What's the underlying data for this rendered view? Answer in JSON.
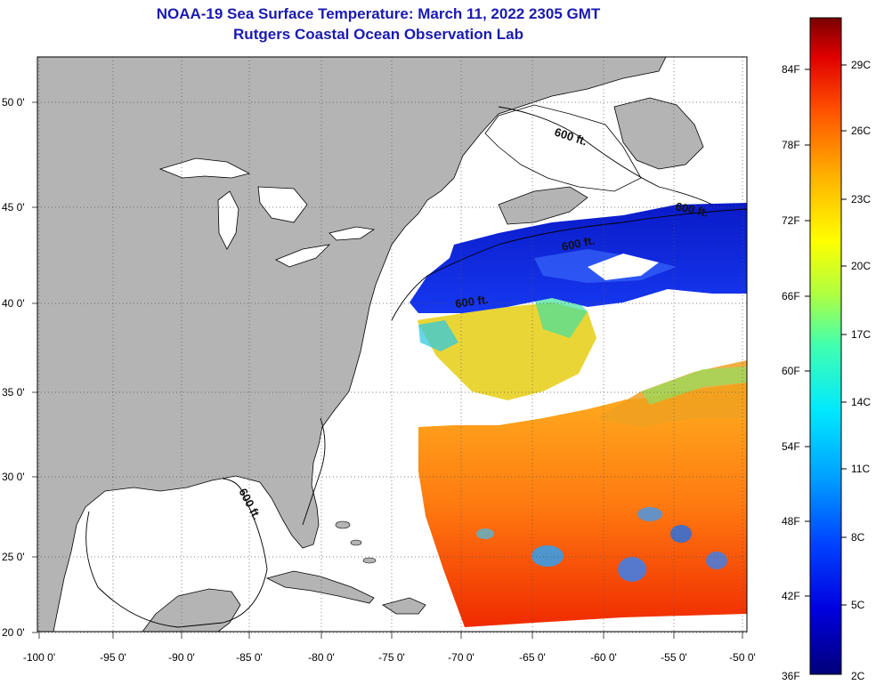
{
  "header": {
    "title": "NOAA-19 Sea Surface Temperature:  March 11, 2022 2305 GMT",
    "subtitle": "Rutgers Coastal Ocean Observation Lab"
  },
  "map": {
    "lat_labels": [
      "50 0'",
      "45 0'",
      "40 0'",
      "35 0'",
      "30 0'",
      "25 0'",
      "20 0'"
    ],
    "lon_labels": [
      "-100 0'",
      "-95 0'",
      "-90 0'",
      "-85 0'",
      "-80 0'",
      "-75 0'",
      "-70 0'",
      "-65 0'",
      "-60 0'",
      "-55 0'",
      "-50 0'"
    ],
    "contour_labels": [
      "600 ft.",
      "600 ft.",
      "600 ft.",
      "600 ft.",
      "600 ft."
    ],
    "colors": {
      "land": "#b4b4b4",
      "nodata": "#ffffff"
    }
  },
  "colorbar": {
    "f_labels": [
      "84F",
      "78F",
      "72F",
      "66F",
      "60F",
      "54F",
      "48F",
      "42F",
      "36F"
    ],
    "c_labels": [
      "29C",
      "26C",
      "23C",
      "20C",
      "17C",
      "14C",
      "11C",
      "8C",
      "5C",
      "2C"
    ]
  }
}
